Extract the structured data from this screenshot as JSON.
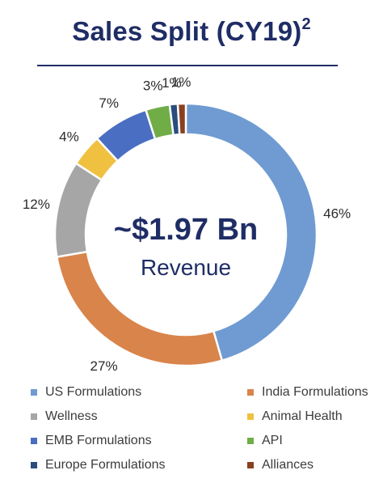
{
  "header": {
    "title": "Sales Split (CY19)",
    "superscript": "2"
  },
  "center": {
    "main": "~$1.97 Bn",
    "sub": "Revenue"
  },
  "chart_data": {
    "type": "pie",
    "variant": "donut",
    "title": "Sales Split (CY19)",
    "categories": [
      "US Formulations",
      "India Formulations",
      "Wellness",
      "Animal Health",
      "EMB Formulations",
      "API",
      "Europe Formulations",
      "Alliances"
    ],
    "values": [
      46,
      27,
      12,
      4,
      7,
      3,
      1,
      1
    ],
    "labels": [
      "46%",
      "27%",
      "12%",
      "4%",
      "7%",
      "3%",
      "1%",
      "1%"
    ],
    "colors": [
      "#6f9bd2",
      "#d9844b",
      "#a6a6a6",
      "#f0c040",
      "#4a6fc2",
      "#70ad47",
      "#2a4d7e",
      "#8a4020"
    ],
    "unit": "%",
    "legend_position": "bottom"
  },
  "legend": {
    "items": [
      {
        "label": "US Formulations",
        "color": "#6f9bd2"
      },
      {
        "label": "India Formulations",
        "color": "#d9844b"
      },
      {
        "label": "Wellness",
        "color": "#a6a6a6"
      },
      {
        "label": "Animal Health",
        "color": "#f0c040"
      },
      {
        "label": "EMB Formulations",
        "color": "#4a6fc2"
      },
      {
        "label": "API",
        "color": "#70ad47"
      },
      {
        "label": "Europe Formulations",
        "color": "#2a4d7e"
      },
      {
        "label": "Alliances",
        "color": "#8a4020"
      }
    ]
  }
}
